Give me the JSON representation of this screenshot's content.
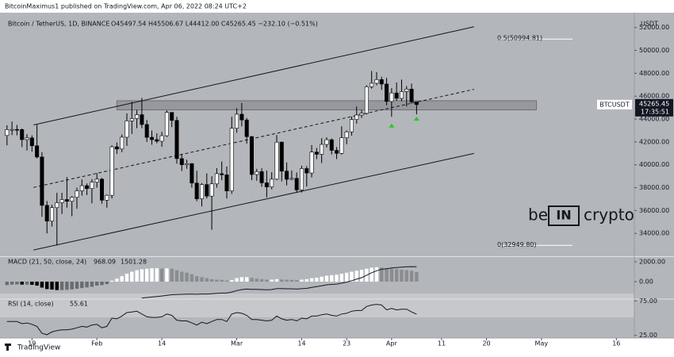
{
  "publisher": "BitcoinMaximus1 published on TradingView.com, Apr 06, 2022 08:24 UTC+2",
  "footer": "TradingView",
  "watermark": [
    "be",
    "IN",
    "crypto"
  ],
  "chart_data": {
    "type": "candlestick",
    "title": "Bitcoin / TetherUS, 1D, BINANCE",
    "ohlc_text": "O45497.54 H45506.67 L44412.00 C45265.45 −232.10 (−0.51%)",
    "symbol": "BTCUSDT",
    "currency": "USDT",
    "countdown": "17:35:51",
    "up_color": "#ffffff",
    "down_color": "#000000",
    "candles": [
      [
        42560,
        43450,
        41700,
        43070
      ],
      [
        43070,
        43780,
        42600,
        43090
      ],
      [
        43090,
        43480,
        42580,
        43080
      ],
      [
        43080,
        43180,
        41550,
        42200
      ],
      [
        42200,
        42680,
        41250,
        42350
      ],
      [
        42350,
        42570,
        41150,
        41660
      ],
      [
        41660,
        43500,
        40550,
        40680
      ],
      [
        40680,
        41100,
        35450,
        36450
      ],
      [
        36450,
        36830,
        34000,
        35070
      ],
      [
        35070,
        36500,
        34600,
        36250
      ],
      [
        36250,
        37550,
        32950,
        36680
      ],
      [
        36680,
        37550,
        35700,
        36960
      ],
      [
        36960,
        38920,
        36250,
        36810
      ],
      [
        36810,
        37250,
        35500,
        37160
      ],
      [
        37160,
        38000,
        36150,
        37720
      ],
      [
        37720,
        38720,
        37300,
        38170
      ],
      [
        38170,
        38360,
        37350,
        37920
      ],
      [
        37920,
        38740,
        36630,
        38480
      ],
      [
        38480,
        39270,
        38000,
        38740
      ],
      [
        38740,
        38850,
        36600,
        36900
      ],
      [
        36900,
        37400,
        36250,
        37330
      ],
      [
        37330,
        41700,
        37050,
        41570
      ],
      [
        41570,
        41950,
        40950,
        41380
      ],
      [
        41380,
        42650,
        41100,
        42410
      ],
      [
        42410,
        44500,
        41650,
        43840
      ],
      [
        43840,
        45500,
        42700,
        44040
      ],
      [
        44040,
        44800,
        43200,
        44380
      ],
      [
        44380,
        45850,
        43200,
        43520
      ],
      [
        43520,
        43920,
        42000,
        42400
      ],
      [
        42400,
        43000,
        41750,
        42200
      ],
      [
        42200,
        42750,
        41880,
        42060
      ],
      [
        42060,
        42880,
        41570,
        42540
      ],
      [
        42540,
        44750,
        42440,
        44580
      ],
      [
        44580,
        44580,
        43300,
        43880
      ],
      [
        43880,
        44200,
        40100,
        40540
      ],
      [
        40540,
        40960,
        39450,
        40000
      ],
      [
        40000,
        40450,
        39650,
        40100
      ],
      [
        40100,
        40150,
        38000,
        38400
      ],
      [
        38400,
        39480,
        36800,
        37020
      ],
      [
        37020,
        38400,
        36350,
        38270
      ],
      [
        38270,
        39250,
        37050,
        37260
      ],
      [
        37260,
        39000,
        34320,
        38330
      ],
      [
        38330,
        39700,
        38000,
        39220
      ],
      [
        39220,
        40280,
        38650,
        39120
      ],
      [
        39120,
        39850,
        37050,
        37710
      ],
      [
        37710,
        44200,
        37450,
        43190
      ],
      [
        43190,
        44950,
        42800,
        44420
      ],
      [
        44420,
        45400,
        43350,
        43920
      ],
      [
        43920,
        44100,
        41850,
        42460
      ],
      [
        42460,
        42520,
        38650,
        39150
      ],
      [
        39150,
        39640,
        38600,
        39400
      ],
      [
        39400,
        39690,
        38080,
        38420
      ],
      [
        38420,
        39500,
        37150,
        38060
      ],
      [
        38060,
        39350,
        37850,
        38740
      ],
      [
        38740,
        42600,
        38650,
        41980
      ],
      [
        41980,
        42030,
        38550,
        39440
      ],
      [
        39440,
        40200,
        38200,
        38730
      ],
      [
        38730,
        39500,
        38650,
        38810
      ],
      [
        38810,
        39330,
        37580,
        37800
      ],
      [
        37800,
        39920,
        37580,
        39670
      ],
      [
        39670,
        39880,
        38100,
        39280
      ],
      [
        39280,
        41720,
        38900,
        41110
      ],
      [
        41110,
        41470,
        40500,
        40920
      ],
      [
        40920,
        42330,
        40150,
        41780
      ],
      [
        41780,
        42400,
        41520,
        42190
      ],
      [
        42190,
        42300,
        40900,
        41260
      ],
      [
        41260,
        41550,
        40500,
        41000
      ],
      [
        41000,
        43360,
        40900,
        42360
      ],
      [
        42360,
        43000,
        41800,
        42880
      ],
      [
        42880,
        44220,
        42550,
        43960
      ],
      [
        43960,
        45100,
        43600,
        44350
      ],
      [
        44350,
        44800,
        44100,
        44500
      ],
      [
        44500,
        46950,
        44400,
        46820
      ],
      [
        46820,
        48200,
        46650,
        47130
      ],
      [
        47130,
        48100,
        46950,
        47450
      ],
      [
        47450,
        47700,
        46550,
        47060
      ],
      [
        47060,
        47600,
        45200,
        45540
      ],
      [
        45540,
        46700,
        44200,
        46280
      ],
      [
        46280,
        47200,
        45600,
        45810
      ],
      [
        45810,
        47450,
        45550,
        46400
      ],
      [
        46400,
        46880,
        45100,
        46620
      ],
      [
        46620,
        47100,
        45350,
        45500
      ],
      [
        45497.54,
        45506.67,
        44412.0,
        45265.45
      ]
    ],
    "last_price": 45265.45,
    "xlim": [
      -1.4,
      125.6
    ],
    "xticks": [
      {
        "value": 5,
        "label": "19"
      },
      {
        "value": 18,
        "label": "Feb"
      },
      {
        "value": 31,
        "label": "14"
      },
      {
        "value": 46,
        "label": "Mar"
      },
      {
        "value": 59,
        "label": "14"
      },
      {
        "value": 68,
        "label": "23"
      },
      {
        "value": 77,
        "label": "Apr"
      },
      {
        "value": 87,
        "label": "11"
      },
      {
        "value": 96,
        "label": "20"
      },
      {
        "value": 107,
        "label": "May"
      },
      {
        "value": 122,
        "label": "16"
      }
    ],
    "ylim": [
      32000,
      53300
    ],
    "yticks": [
      {
        "value": 52000,
        "label": "52000.00"
      },
      {
        "value": 50000,
        "label": "50000.00"
      },
      {
        "value": 48000,
        "label": "48000.00"
      },
      {
        "value": 46000,
        "label": "46000.00"
      },
      {
        "value": 44000,
        "label": "44000.00"
      },
      {
        "value": 42000,
        "label": "42000.00"
      },
      {
        "value": 40000,
        "label": "40000.00"
      },
      {
        "value": 38000,
        "label": "38000.00"
      },
      {
        "value": 36000,
        "label": "36000.00"
      },
      {
        "value": 34000,
        "label": "34000.00"
      }
    ],
    "channel": {
      "upper": [
        [
          5.3,
          43480
        ],
        [
          93.5,
          52070
        ]
      ],
      "middle": [
        [
          5.3,
          38015
        ],
        [
          93.5,
          46600
        ]
      ],
      "lower": [
        [
          5.3,
          32546
        ],
        [
          93.5,
          40990
        ]
      ]
    },
    "zone": {
      "x": [
        22,
        106
      ],
      "y": [
        44800,
        45600
      ]
    },
    "fib_levels": [
      {
        "value": 50994.81,
        "label": "0.5(50994.81)"
      },
      {
        "value": 32949.8,
        "label": "0(32949.80)"
      }
    ],
    "markers": [
      {
        "x": 77,
        "y": 43400,
        "color": "#26c826"
      },
      {
        "x": 82,
        "y": 44000,
        "color": "#26c826"
      }
    ],
    "macd": {
      "title": "MACD (21, 50, close, 24)",
      "ylim": [
        -1680,
        2480
      ],
      "yticks": [
        {
          "value": 2000,
          "label": "2000.00"
        },
        {
          "value": 0,
          "label": "0.00"
        }
      ],
      "hist": [
        -350,
        -300,
        -280,
        -300,
        -300,
        -320,
        -400,
        -600,
        -750,
        -800,
        -850,
        -850,
        -820,
        -780,
        -720,
        -650,
        -580,
        -520,
        -400,
        -350,
        -250,
        100,
        300,
        550,
        800,
        1000,
        1150,
        1250,
        1300,
        1350,
        1350,
        1320,
        1340,
        1300,
        1150,
        1000,
        900,
        750,
        550,
        450,
        350,
        250,
        200,
        180,
        120,
        150,
        350,
        450,
        450,
        380,
        300,
        250,
        200,
        200,
        250,
        220,
        200,
        180,
        150,
        200,
        250,
        350,
        400,
        500,
        600,
        650,
        700,
        800,
        900,
        1000,
        1100,
        1200,
        1300,
        1400,
        1450,
        1420,
        1350,
        1300,
        1250,
        1200,
        1150,
        1100,
        968.09
      ],
      "line": [
        null,
        null,
        null,
        null,
        null,
        null,
        null,
        null,
        null,
        null,
        null,
        null,
        null,
        null,
        null,
        null,
        null,
        null,
        null,
        null,
        null,
        null,
        null,
        null,
        null,
        null,
        null,
        -1650,
        -1600,
        -1550,
        -1500,
        -1450,
        -1380,
        -1320,
        -1300,
        -1280,
        -1260,
        -1260,
        -1270,
        -1250,
        -1250,
        -1220,
        -1180,
        -1150,
        -1150,
        -1050,
        -900,
        -800,
        -750,
        -780,
        -780,
        -800,
        -820,
        -800,
        -700,
        -700,
        -720,
        -720,
        -750,
        -700,
        -680,
        -580,
        -500,
        -420,
        -320,
        -280,
        -250,
        -150,
        -50,
        100,
        250,
        400,
        650,
        900,
        1100,
        1250,
        1300,
        1380,
        1420,
        1460,
        1500,
        1510,
        1501.28
      ]
    },
    "rsi": {
      "title": "RSI (14, close)",
      "ylim": [
        22.4,
        77.6
      ],
      "yticks": [
        {
          "value": 75,
          "label": "75.00"
        },
        {
          "value": 25,
          "label": "25.00"
        }
      ],
      "values": [
        45,
        45,
        45,
        42,
        43,
        41,
        38,
        28,
        26,
        30,
        32,
        33,
        33,
        34,
        36,
        38,
        37,
        40,
        41,
        36,
        38,
        50,
        49,
        53,
        58,
        59,
        60,
        56,
        52,
        51,
        51,
        52,
        56,
        54,
        47,
        46,
        46,
        43,
        40,
        44,
        42,
        45,
        48,
        48,
        45,
        56,
        58,
        57,
        54,
        48,
        48,
        47,
        46,
        47,
        53,
        49,
        47,
        48,
        46,
        50,
        49,
        53,
        53,
        55,
        56,
        54,
        53,
        56,
        57,
        60,
        61,
        61,
        67,
        69,
        70,
        69,
        62,
        64,
        62,
        63,
        63,
        59,
        55.61
      ]
    }
  }
}
